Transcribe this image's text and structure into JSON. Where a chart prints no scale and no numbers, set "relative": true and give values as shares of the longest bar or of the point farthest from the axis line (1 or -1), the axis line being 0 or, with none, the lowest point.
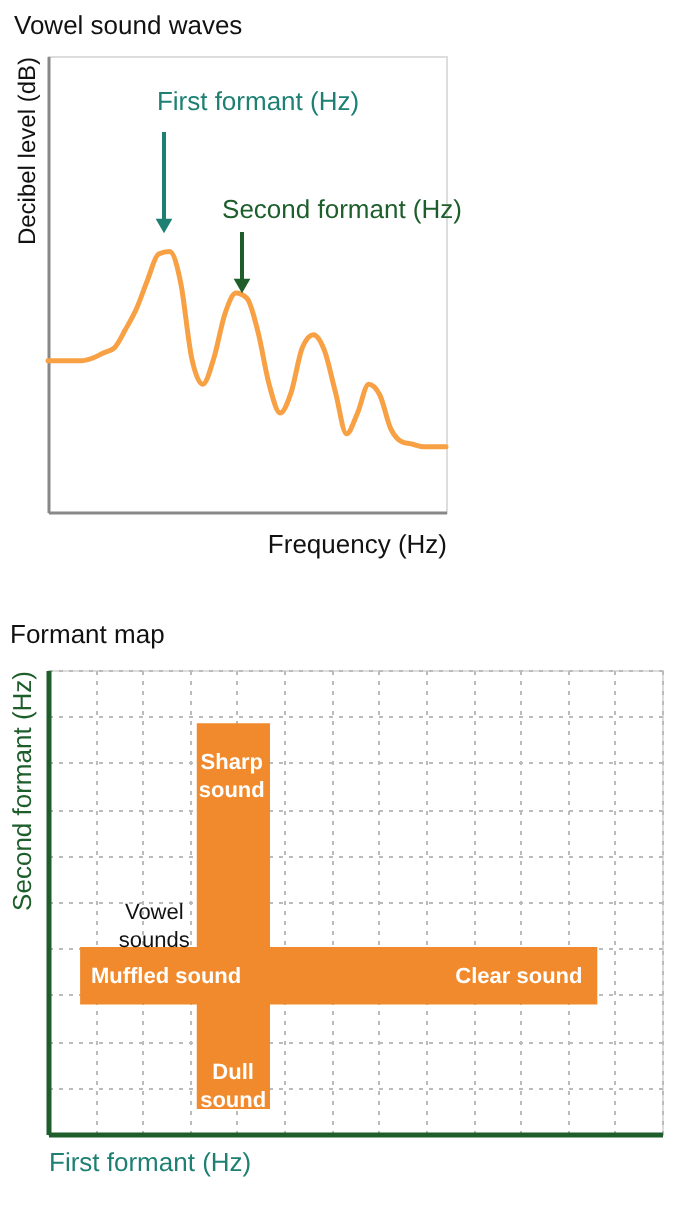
{
  "chart_data": [
    {
      "type": "line",
      "title": "Vowel sound waves",
      "xlabel": "Frequency (Hz)",
      "ylabel": "Decibel level (dB)",
      "relative": true,
      "color": "#f8a044",
      "grid": false,
      "categories": [
        null,
        null,
        null,
        null,
        null,
        null,
        null,
        null,
        null,
        null,
        null,
        null,
        null,
        null,
        null,
        null,
        null,
        null,
        null,
        null,
        null,
        null,
        null,
        null,
        null,
        null,
        null,
        null,
        null,
        null,
        null,
        null,
        null,
        null,
        null,
        null,
        null
      ],
      "values": [
        0.58,
        0.58,
        0.58,
        0.58,
        0.59,
        0.61,
        0.63,
        0.7,
        0.78,
        0.89,
        0.99,
        1.0,
        0.88,
        0.59,
        0.49,
        0.59,
        0.76,
        0.84,
        0.82,
        0.69,
        0.49,
        0.38,
        0.46,
        0.63,
        0.68,
        0.62,
        0.46,
        0.3,
        0.38,
        0.49,
        0.45,
        0.32,
        0.27,
        0.26,
        0.25,
        0.25,
        0.25
      ],
      "annotations": [
        "First formant (Hz)",
        "Second formant (Hz)"
      ]
    },
    {
      "type": "other",
      "title": "Formant map",
      "xlabel": "First formant (Hz)",
      "ylabel": "Second formant (Hz)",
      "annotations": [
        "Sharp\nsound",
        "Vowel\nsounds",
        "Muffled sound",
        "Clear sound",
        "Dull\nsound"
      ]
    }
  ]
}
